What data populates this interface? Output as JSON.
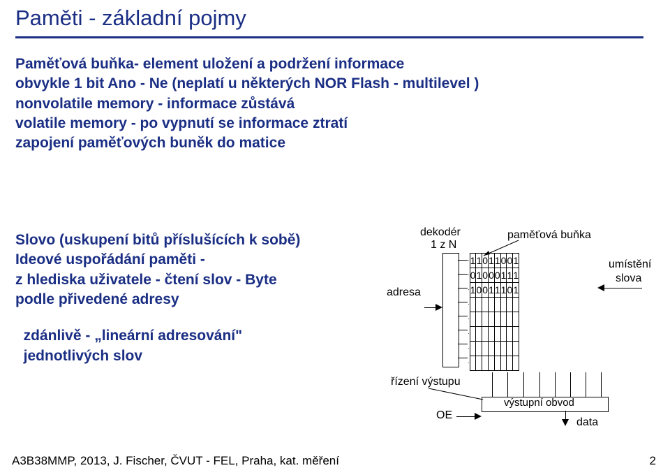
{
  "title": "Paměti - základní pojmy",
  "body_lines": {
    "l0": "Paměťová buňka- element uložení a podržení informace",
    "l1": "obvykle 1 bit  Ano - Ne  (neplatí u některých NOR Flash - multilevel )",
    "l2": "nonvolatile memory - informace zůstává",
    "l3": "volatile memory - po vypnutí se informace ztratí",
    "l4": "zapojení paměťových buněk do matice"
  },
  "left_block": {
    "l0": "Slovo (uskupení bitů příslušících k sobě)",
    "l1": "Ideové uspořádání paměti -",
    "l2": "z hlediska uživatele - čtení slov - Byte",
    "l3": "podle přivedené adresy",
    "g0": "",
    "l4": "  zdánlivě - „lineární adresování\"",
    "l5": "  jednotlivých slov"
  },
  "diagram": {
    "decoder_label_top": "dekodér",
    "decoder_label_bot": "1 z N",
    "cell_label": "paměťová buňka",
    "adresa": "adresa",
    "umisteni": "umístění",
    "slova": "slova",
    "grid": {
      "cols": 8,
      "rows": 8,
      "data_rows": [
        [
          "1",
          "1",
          "0",
          "1",
          "1",
          "0",
          "0",
          "1"
        ],
        [
          "0",
          "1",
          "0",
          "0",
          "0",
          "1",
          "1",
          "1"
        ],
        [
          "1",
          "0",
          "0",
          "1",
          "1",
          "1",
          "0",
          "1"
        ]
      ],
      "empty_rows": 5,
      "dot_col_char": "·"
    },
    "decoder_box": {
      "w": 22,
      "h": 162
    }
  },
  "bottom": {
    "label_left": "řízení výstupu",
    "oe": "OE",
    "out_label": "výstupní obvod",
    "data_label": "data"
  },
  "footer": "A3B38MMP, 2013, J. Fischer,  ČVUT - FEL, Praha, kat. měření",
  "pagenum": "2",
  "colors": {
    "accent": "#1a2e84",
    "fg": "#000000",
    "bg": "#ffffff"
  }
}
